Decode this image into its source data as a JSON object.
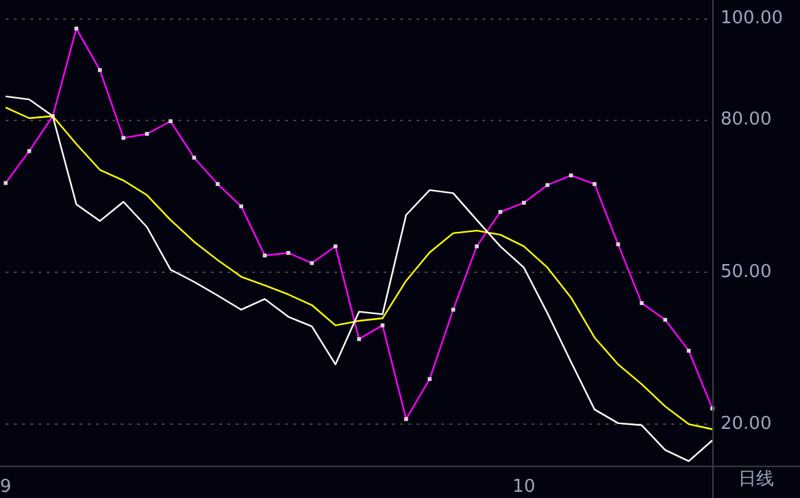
{
  "chart_data": {
    "type": "line",
    "categories": [
      "9",
      null,
      null,
      null,
      null,
      null,
      null,
      null,
      null,
      null,
      null,
      null,
      null,
      null,
      null,
      null,
      null,
      null,
      null,
      null,
      null,
      null,
      "10",
      null,
      null,
      null,
      null,
      null,
      null,
      null,
      null
    ],
    "series": [
      {
        "color": "#ffffff",
        "marker": "none",
        "values": [
          84.7,
          84.1,
          80.8,
          63.4,
          60.1,
          63.9,
          58.9,
          50.5,
          48.1,
          45.4,
          42.6,
          44.7,
          41.2,
          39.3,
          31.8,
          42.2,
          41.7,
          61.3,
          66.2,
          65.6,
          60.3,
          55.1,
          50.9,
          41.9,
          32.3,
          22.9,
          20.2,
          19.8,
          14.9,
          12.7,
          16.8
        ]
      },
      {
        "color": "#ffff00",
        "marker": "none",
        "values": [
          82.5,
          80.4,
          80.8,
          75.3,
          70.2,
          68.1,
          65.2,
          60.3,
          56.0,
          52.4,
          49.1,
          47.4,
          45.6,
          43.5,
          39.5,
          40.4,
          40.9,
          48.3,
          53.9,
          57.7,
          58.2,
          57.4,
          55.1,
          50.9,
          45.0,
          37.1,
          31.8,
          27.9,
          23.5,
          20.0,
          19.0
        ]
      },
      {
        "color": "#ff00ff",
        "marker": "square",
        "values": [
          67.6,
          73.9,
          80.8,
          98.1,
          89.9,
          76.5,
          77.3,
          79.8,
          72.6,
          67.4,
          63.0,
          53.3,
          53.8,
          51.8,
          55.1,
          36.8,
          39.5,
          21.0,
          28.9,
          42.6,
          55.1,
          61.9,
          63.7,
          67.2,
          69.1,
          67.4,
          55.5,
          43.9,
          40.6,
          34.5,
          23.1
        ]
      }
    ],
    "ylim": [
      11.8,
      100
    ],
    "yticks": [
      {
        "value": 20,
        "label": "20.00"
      },
      {
        "value": 50,
        "label": "50.00"
      },
      {
        "value": 80,
        "label": "80.00"
      },
      {
        "value": 100,
        "label": "100.00"
      }
    ],
    "grid": "y",
    "legend": false,
    "line_style": "solid",
    "annotations": [
      "日线"
    ]
  }
}
